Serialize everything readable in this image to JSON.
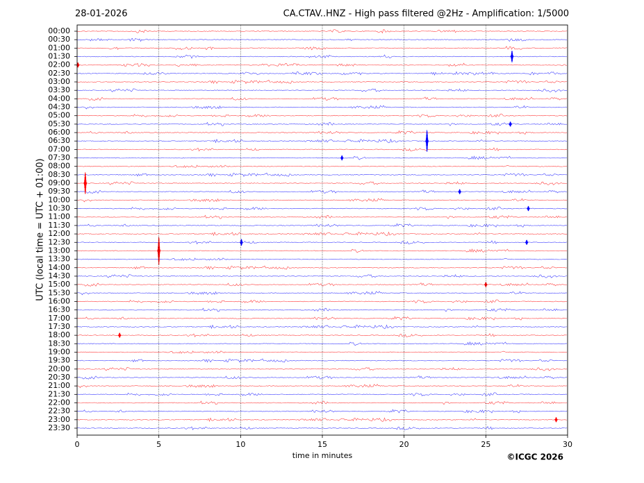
{
  "chart_data": {
    "type": "helicorder",
    "date": "28-01-2026",
    "title": "CA.CTAV..HNZ - High pass filtered @2Hz - Amplification: 1/5000",
    "y_label": "UTC (local time = UTC + 01:00)",
    "x_label": "time in minutes",
    "credit": "©ICGC 2026",
    "categories": [
      "00:00",
      "00:30",
      "01:00",
      "01:30",
      "02:00",
      "02:30",
      "03:00",
      "03:30",
      "04:00",
      "04:30",
      "05:00",
      "05:30",
      "06:00",
      "06:30",
      "07:00",
      "07:30",
      "08:00",
      "08:30",
      "09:00",
      "09:30",
      "10:00",
      "10:30",
      "11:00",
      "11:30",
      "12:00",
      "12:30",
      "13:00",
      "13:30",
      "14:00",
      "14:30",
      "15:00",
      "15:30",
      "16:00",
      "16:30",
      "17:00",
      "17:30",
      "18:00",
      "18:30",
      "19:00",
      "19:30",
      "20:00",
      "20:30",
      "21:00",
      "21:30",
      "22:00",
      "22:30",
      "23:00",
      "23:30"
    ],
    "trace_colors": [
      "#ff0000",
      "#0000ff"
    ],
    "xlim": [
      0,
      30
    ],
    "xticks": [
      0,
      5,
      10,
      15,
      20,
      25,
      30
    ],
    "grid": true,
    "events": [
      {
        "row": 3,
        "minute": 26.6,
        "amplitude": 0.7
      },
      {
        "row": 4,
        "minute": 0.05,
        "amplitude": 0.3
      },
      {
        "row": 11,
        "minute": 26.5,
        "amplitude": 0.3
      },
      {
        "row": 13,
        "minute": 21.4,
        "amplitude": 1.3
      },
      {
        "row": 15,
        "minute": 16.2,
        "amplitude": 0.3
      },
      {
        "row": 18,
        "minute": 0.5,
        "amplitude": 1.3
      },
      {
        "row": 19,
        "minute": 23.4,
        "amplitude": 0.3
      },
      {
        "row": 21,
        "minute": 27.6,
        "amplitude": 0.3
      },
      {
        "row": 25,
        "minute": 10.05,
        "amplitude": 0.4
      },
      {
        "row": 25,
        "minute": 27.5,
        "amplitude": 0.3
      },
      {
        "row": 26,
        "minute": 5.0,
        "amplitude": 1.7
      },
      {
        "row": 30,
        "minute": 25.0,
        "amplitude": 0.3
      },
      {
        "row": 36,
        "minute": 2.6,
        "amplitude": 0.3
      },
      {
        "row": 46,
        "minute": 29.3,
        "amplitude": 0.3
      }
    ]
  }
}
